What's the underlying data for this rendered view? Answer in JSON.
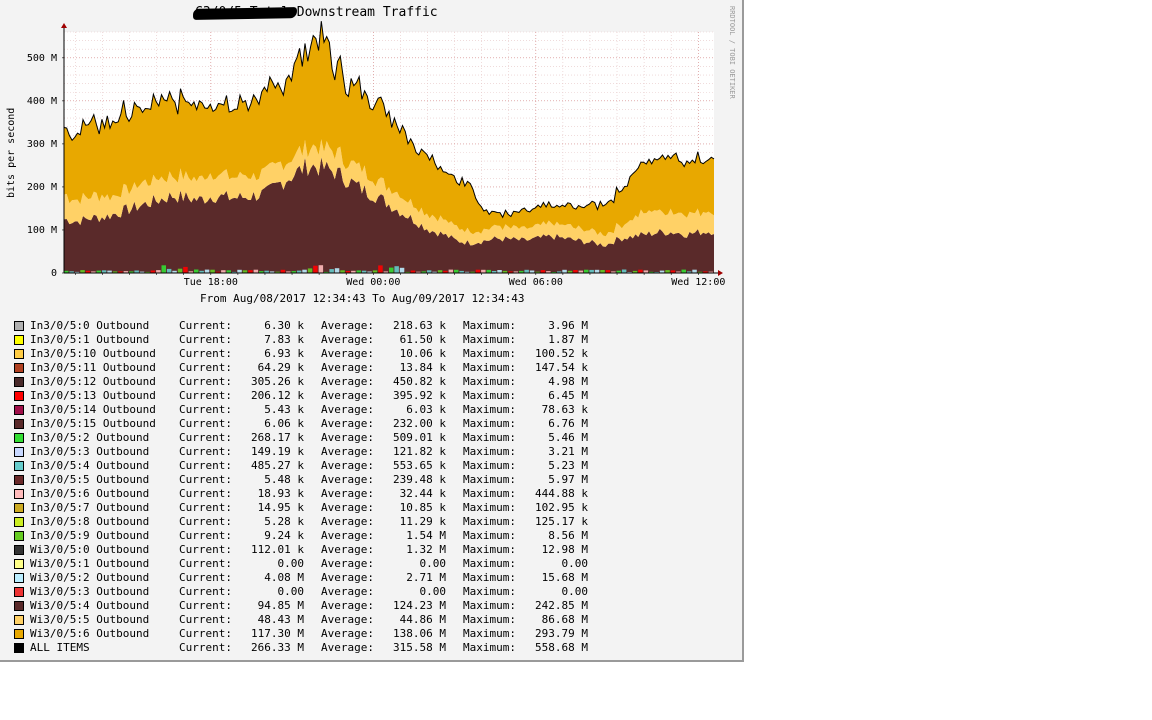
{
  "chart_data": {
    "type": "area",
    "title": "C3/0/5 Total Downstream Traffic",
    "title_prefix_redacted": true,
    "ylabel": "bits per second",
    "xlabel": "",
    "ylim": [
      0,
      560
    ],
    "y_unit": "M",
    "y_ticks": [
      "0",
      "100 M",
      "200 M",
      "300 M",
      "400 M",
      "500 M"
    ],
    "x_range": [
      "2017-08-08 12:34:43",
      "2017-08-09 12:34:43"
    ],
    "x_ticks": [
      {
        "label": "Tue 18:00",
        "t": 5.42
      },
      {
        "label": "Wed 00:00",
        "t": 11.42
      },
      {
        "label": "Wed 06:00",
        "t": 17.42
      },
      {
        "label": "Wed 12:00",
        "t": 23.42
      }
    ],
    "grid": true,
    "stack_order_bottom_to_top": [
      "Wi3/0/5:4",
      "Wi3/0/5:5",
      "Wi3/0/5:6"
    ],
    "series": [
      {
        "name": "Wi3/0/5:4 Outbound",
        "color": "#5a2a2a",
        "x": [
          0,
          0.5,
          1,
          1.5,
          2,
          2.5,
          3,
          3.5,
          4,
          4.5,
          5,
          5.5,
          6,
          6.5,
          7,
          7.5,
          8,
          8.5,
          9,
          9.5,
          10,
          10.5,
          11,
          11.5,
          12,
          12.5,
          13,
          13.5,
          14,
          14.5,
          15,
          15.5,
          16,
          16.5,
          17,
          17.5,
          18,
          18.5,
          19,
          19.5,
          20,
          20.5,
          21,
          21.5,
          22,
          22.5,
          23,
          23.5,
          24
        ],
        "values": [
          125,
          120,
          128,
          130,
          140,
          150,
          160,
          170,
          180,
          175,
          170,
          180,
          175,
          175,
          180,
          185,
          210,
          230,
          250,
          245,
          235,
          215,
          195,
          180,
          160,
          140,
          120,
          100,
          90,
          75,
          70,
          75,
          80,
          78,
          75,
          80,
          85,
          80,
          75,
          70,
          65,
          80,
          85,
          90,
          95,
          95,
          90,
          95,
          98
        ]
      },
      {
        "name": "Wi3/0/5:5 Outbound",
        "color": "#ffd166",
        "x": [
          0,
          0.5,
          1,
          1.5,
          2,
          2.5,
          3,
          3.5,
          4,
          4.5,
          5,
          5.5,
          6,
          6.5,
          7,
          7.5,
          8,
          8.5,
          9,
          9.5,
          10,
          10.5,
          11,
          11.5,
          12,
          12.5,
          13,
          13.5,
          14,
          14.5,
          15,
          15.5,
          16,
          16.5,
          17,
          17.5,
          18,
          18.5,
          19,
          19.5,
          20,
          20.5,
          21,
          21.5,
          22,
          22.5,
          23,
          23.5,
          24
        ],
        "values": [
          55,
          52,
          50,
          48,
          45,
          48,
          50,
          50,
          48,
          48,
          50,
          52,
          52,
          50,
          48,
          50,
          45,
          45,
          45,
          45,
          45,
          45,
          45,
          42,
          42,
          40,
          40,
          36,
          34,
          32,
          28,
          25,
          30,
          28,
          28,
          28,
          30,
          30,
          28,
          28,
          26,
          30,
          40,
          55,
          50,
          50,
          50,
          48,
          45
        ]
      },
      {
        "name": "Wi3/0/5:6 Outbound",
        "color": "#e8a800",
        "x": [
          0,
          0.5,
          1,
          1.5,
          2,
          2.5,
          3,
          3.5,
          4,
          4.5,
          5,
          5.5,
          6,
          6.5,
          7,
          7.5,
          8,
          8.5,
          9,
          9.5,
          10,
          10.5,
          11,
          11.5,
          12,
          12.5,
          13,
          13.5,
          14,
          14.5,
          15,
          15.5,
          16,
          16.5,
          17,
          17.5,
          18,
          18.5,
          19,
          19.5,
          20,
          20.5,
          21,
          21.5,
          22,
          22.5,
          23,
          23.5,
          24
        ],
        "values": [
          145,
          160,
          165,
          170,
          180,
          175,
          170,
          180,
          175,
          175,
          180,
          170,
          165,
          175,
          170,
          185,
          185,
          205,
          220,
          255,
          200,
          180,
          185,
          180,
          170,
          160,
          140,
          135,
          120,
          110,
          110,
          45,
          30,
          30,
          40,
          40,
          40,
          45,
          50,
          60,
          70,
          80,
          100,
          120,
          120,
          130,
          125,
          120,
          130
        ]
      }
    ]
  },
  "axis": {
    "y_ticks": [
      "0",
      "100 M",
      "200 M",
      "300 M",
      "400 M",
      "500 M"
    ],
    "x_ticks": [
      "Tue 18:00",
      "Wed 00:00",
      "Wed 06:00",
      "Wed 12:00"
    ],
    "ylabel": "bits per second"
  },
  "header": {
    "title": "C3/0/5 Total Downstream Traffic"
  },
  "watermark": "RRDTOOL / TOBI OETIKER",
  "range_text": "From Aug/08/2017 12:34:43 To Aug/09/2017 12:34:43",
  "legend_labels": {
    "current": "Current:",
    "average": "Average:",
    "maximum": "Maximum:"
  },
  "legend": [
    {
      "name": "In3/0/5:0 Outbound",
      "color": "#b0b0b0",
      "current": "6.30 k",
      "average": "218.63 k",
      "maximum": "3.96 M"
    },
    {
      "name": "In3/0/5:1 Outbound",
      "color": "#ffff00",
      "current": "7.83 k",
      "average": "61.50 k",
      "maximum": "1.87 M"
    },
    {
      "name": "In3/0/5:10 Outbound",
      "color": "#ffcc44",
      "current": "6.93 k",
      "average": "10.06 k",
      "maximum": "100.52 k"
    },
    {
      "name": "In3/0/5:11 Outbound",
      "color": "#b04020",
      "current": "64.29 k",
      "average": "13.84 k",
      "maximum": "147.54 k"
    },
    {
      "name": "In3/0/5:12 Outbound",
      "color": "#4a2a2a",
      "current": "305.26 k",
      "average": "450.82 k",
      "maximum": "4.98 M"
    },
    {
      "name": "In3/0/5:13 Outbound",
      "color": "#ff0000",
      "current": "206.12 k",
      "average": "395.92 k",
      "maximum": "6.45 M"
    },
    {
      "name": "In3/0/5:14 Outbound",
      "color": "#a0104a",
      "current": "5.43 k",
      "average": "6.03 k",
      "maximum": "78.63 k"
    },
    {
      "name": "In3/0/5:15 Outbound",
      "color": "#5a2a2a",
      "current": "6.06 k",
      "average": "232.00 k",
      "maximum": "6.76 M"
    },
    {
      "name": "In3/0/5:2 Outbound",
      "color": "#33dd33",
      "current": "268.17 k",
      "average": "509.01 k",
      "maximum": "5.46 M"
    },
    {
      "name": "In3/0/5:3 Outbound",
      "color": "#c8d8ff",
      "current": "149.19 k",
      "average": "121.82 k",
      "maximum": "3.21 M"
    },
    {
      "name": "In3/0/5:4 Outbound",
      "color": "#66cccc",
      "current": "485.27 k",
      "average": "553.65 k",
      "maximum": "5.23 M"
    },
    {
      "name": "In3/0/5:5 Outbound",
      "color": "#6a2a2a",
      "current": "5.48 k",
      "average": "239.48 k",
      "maximum": "5.97 M"
    },
    {
      "name": "In3/0/5:6 Outbound",
      "color": "#ffbbbb",
      "current": "18.93 k",
      "average": "32.44 k",
      "maximum": "444.88 k"
    },
    {
      "name": "In3/0/5:7 Outbound",
      "color": "#ccaa22",
      "current": "14.95 k",
      "average": "10.85 k",
      "maximum": "102.95 k"
    },
    {
      "name": "In3/0/5:8 Outbound",
      "color": "#ccee22",
      "current": "5.28 k",
      "average": "11.29 k",
      "maximum": "125.17 k"
    },
    {
      "name": "In3/0/5:9 Outbound",
      "color": "#66cc22",
      "current": "9.24 k",
      "average": "1.54 M",
      "maximum": "8.56 M"
    },
    {
      "name": "Wi3/0/5:0 Outbound",
      "color": "#333333",
      "current": "112.01 k",
      "average": "1.32 M",
      "maximum": "12.98 M"
    },
    {
      "name": "Wi3/0/5:1 Outbound",
      "color": "#ffff88",
      "current": "0.00",
      "average": "0.00",
      "maximum": "0.00"
    },
    {
      "name": "Wi3/0/5:2 Outbound",
      "color": "#bbeeff",
      "current": "4.08 M",
      "average": "2.71 M",
      "maximum": "15.68 M"
    },
    {
      "name": "Wi3/0/5:3 Outbound",
      "color": "#ee3333",
      "current": "0.00",
      "average": "0.00",
      "maximum": "0.00"
    },
    {
      "name": "Wi3/0/5:4 Outbound",
      "color": "#5a2a2a",
      "current": "94.85 M",
      "average": "124.23 M",
      "maximum": "242.85 M"
    },
    {
      "name": "Wi3/0/5:5 Outbound",
      "color": "#ffd166",
      "current": "48.43 M",
      "average": "44.86 M",
      "maximum": "86.68 M"
    },
    {
      "name": "Wi3/0/5:6 Outbound",
      "color": "#e8a800",
      "current": "117.30 M",
      "average": "138.06 M",
      "maximum": "293.79 M"
    },
    {
      "name": "ALL ITEMS",
      "color": "#000000",
      "current": "266.33 M",
      "average": "315.58 M",
      "maximum": "558.68 M"
    }
  ]
}
